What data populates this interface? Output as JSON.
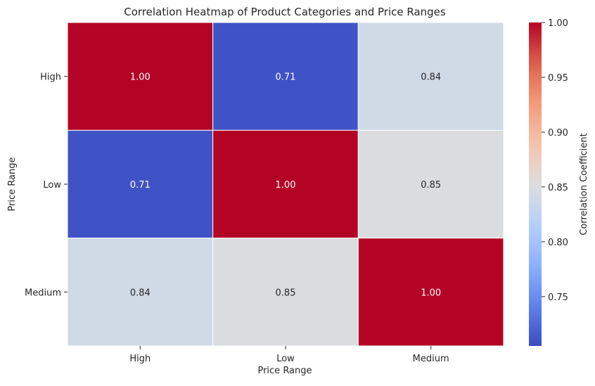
{
  "chart_data": {
    "type": "heatmap",
    "title": "Correlation Heatmap of Product Categories and Price Ranges",
    "xlabel": "Price Range",
    "ylabel": "Price Range",
    "x_categories": [
      "High",
      "Low",
      "Medium"
    ],
    "y_categories": [
      "High",
      "Low",
      "Medium"
    ],
    "values": [
      [
        1.0,
        0.71,
        0.84
      ],
      [
        0.71,
        1.0,
        0.85
      ],
      [
        0.84,
        0.85,
        1.0
      ]
    ],
    "value_format": "2dp",
    "colormap": "coolwarm",
    "vmin": 0.705,
    "vmax": 1.0,
    "colorbar": {
      "label": "Correlation Coefficient",
      "ticks": [
        "0.75",
        "0.80",
        "0.85",
        "0.90",
        "0.95",
        "1.00"
      ],
      "tick_values": [
        0.75,
        0.8,
        0.85,
        0.9,
        0.95,
        1.0
      ]
    },
    "cell_border_color": "#ffffff"
  }
}
